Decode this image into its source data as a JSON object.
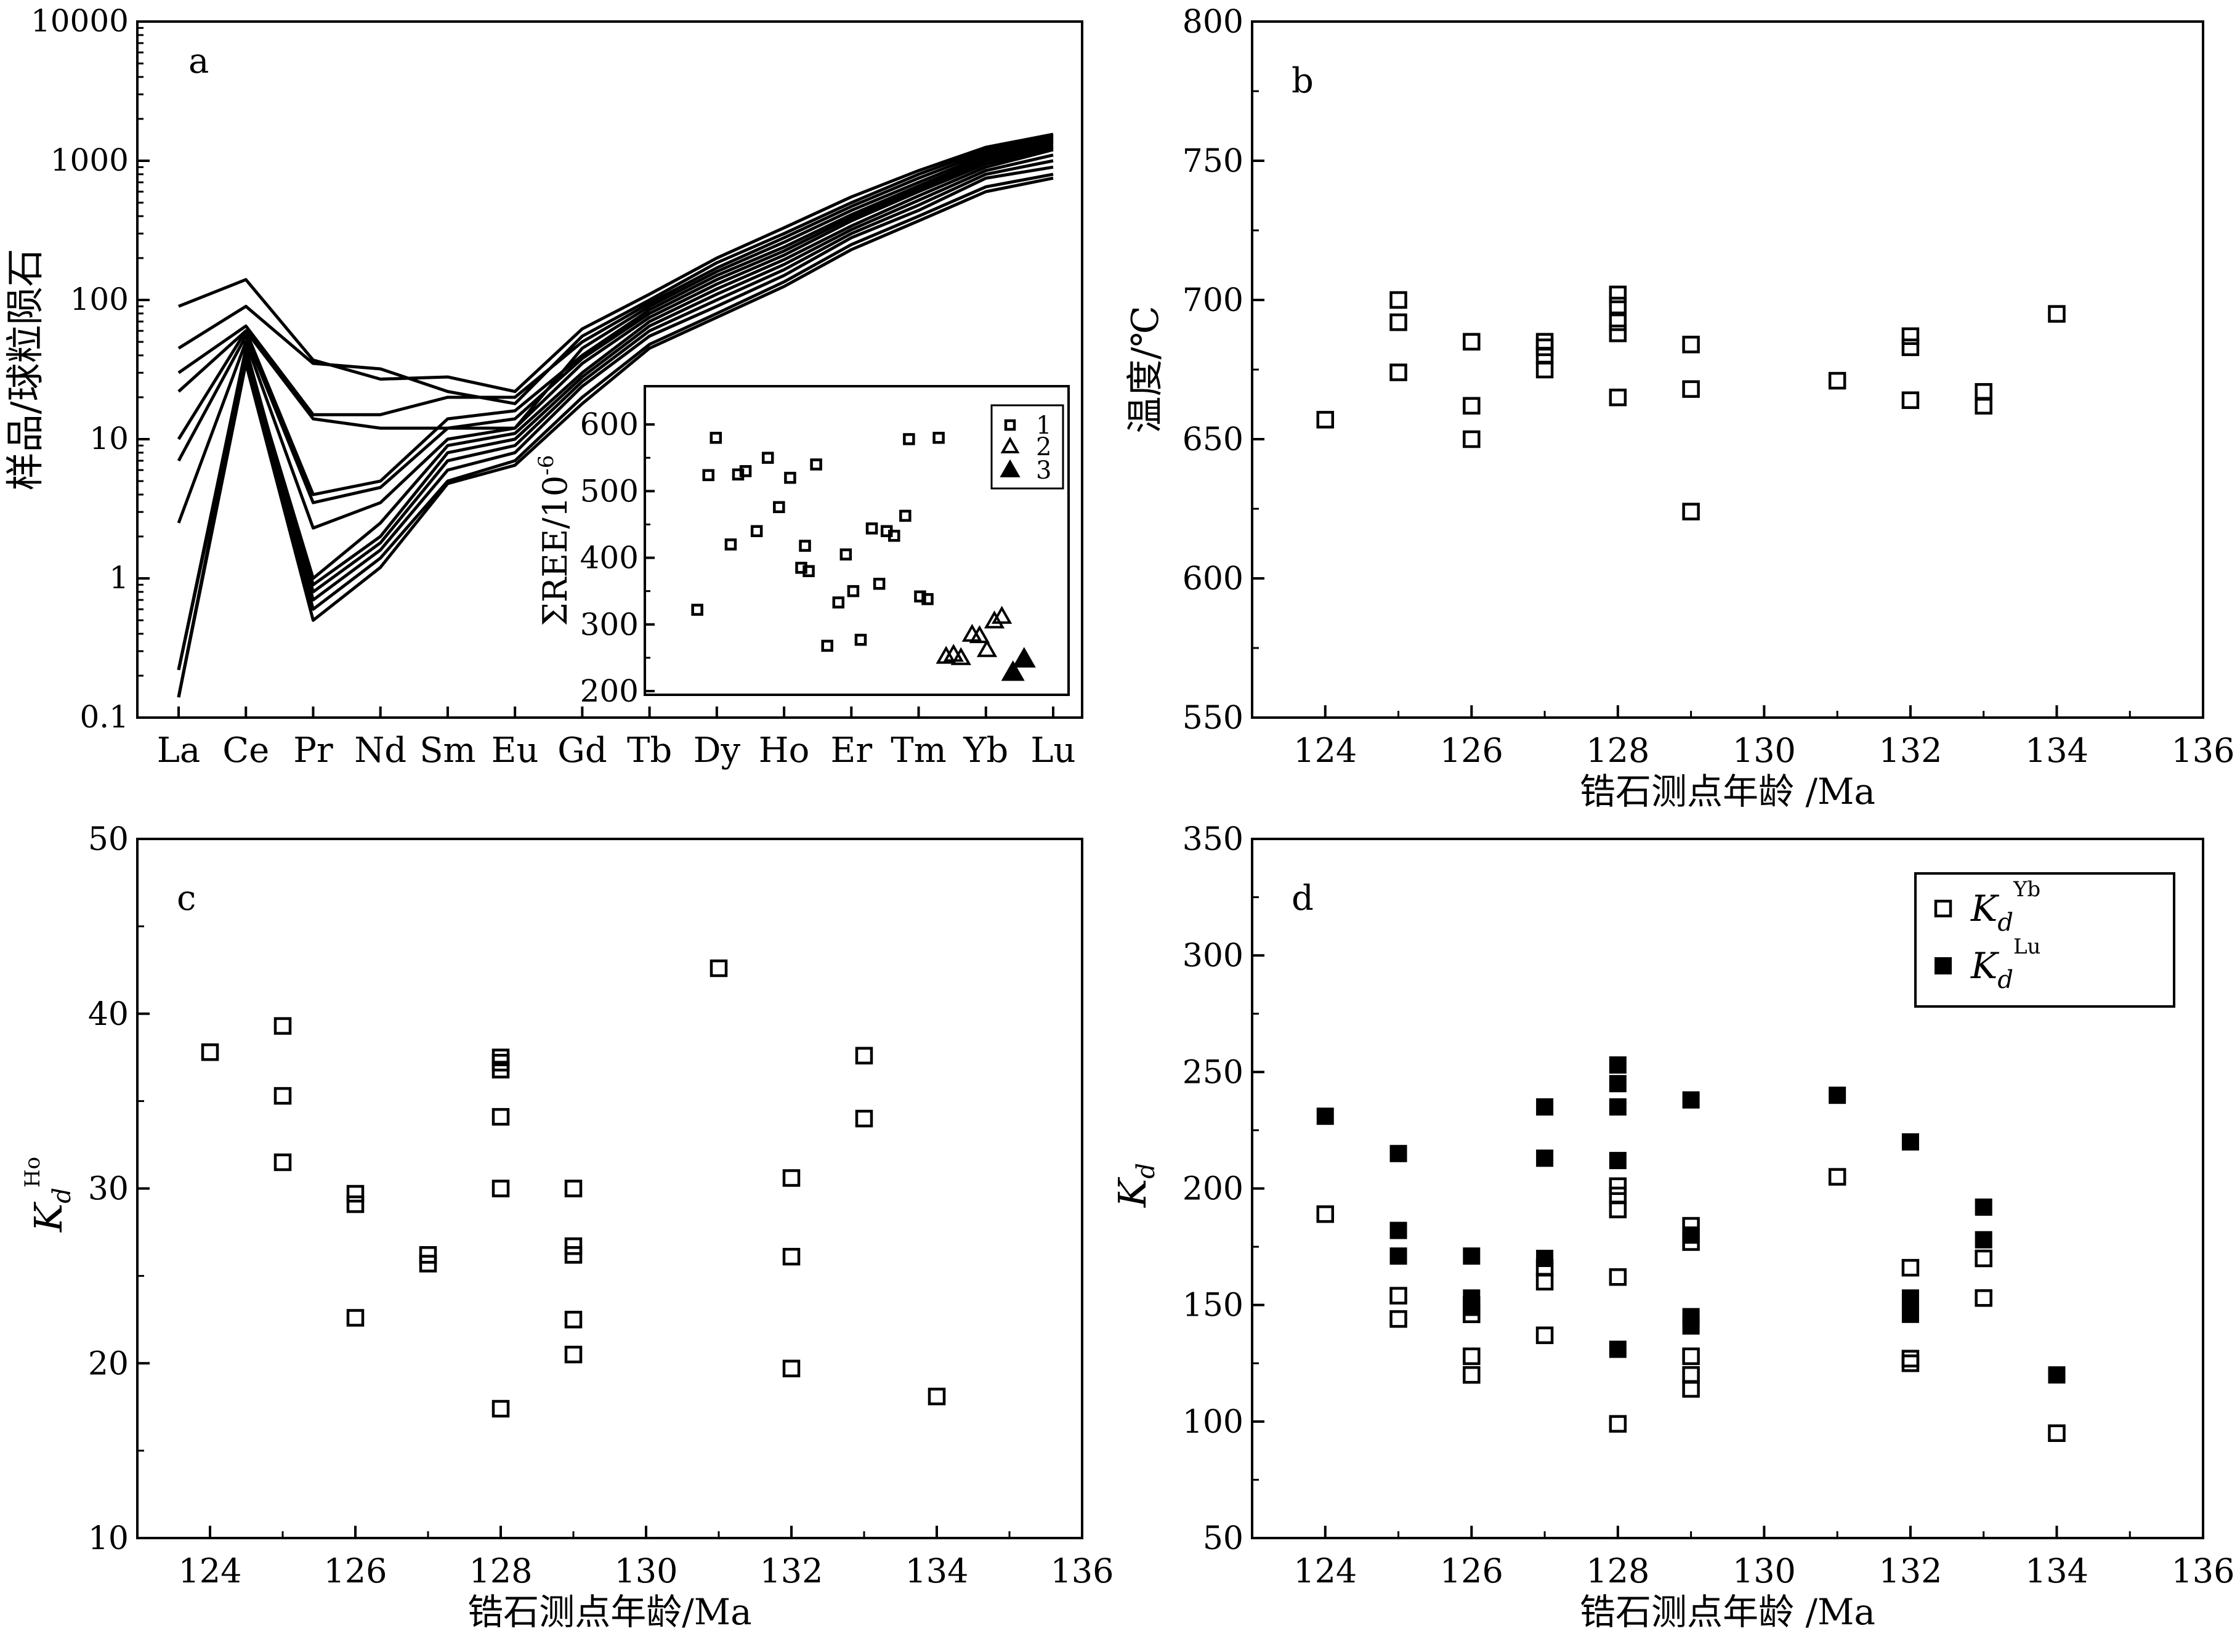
{
  "figure": {
    "panel_a": {
      "tag": "a",
      "ylabel": "样品/球粒陨石",
      "yticks": [
        "0.1",
        "1",
        "10",
        "100",
        "1000",
        "10000"
      ],
      "xticks": [
        "La",
        "Ce",
        "Pr",
        "Nd",
        "Sm",
        "Eu",
        "Gd",
        "Tb",
        "Dy",
        "Ho",
        "Er",
        "Tm",
        "Yb",
        "Lu"
      ],
      "inset": {
        "ylabel": "ΣREE/10",
        "ylabel_exp": "-6",
        "yticks": [
          "200",
          "300",
          "400",
          "500",
          "600"
        ],
        "legend": [
          "1",
          "2",
          "3"
        ]
      }
    },
    "panel_b": {
      "tag": "b",
      "ylabel": "温度/℃",
      "xlabel": "锆石测点年龄 /Ma",
      "yticks": [
        "550",
        "600",
        "650",
        "700",
        "750",
        "800"
      ],
      "xticks": [
        "124",
        "126",
        "128",
        "130",
        "132",
        "134",
        "136"
      ]
    },
    "panel_c": {
      "tag": "c",
      "ylabel_main": "K",
      "ylabel_sub": "d",
      "ylabel_sup": "Ho",
      "xlabel": "锆石测点年龄/Ma",
      "yticks": [
        "10",
        "20",
        "30",
        "40",
        "50"
      ],
      "xticks": [
        "124",
        "126",
        "128",
        "130",
        "132",
        "134",
        "136"
      ]
    },
    "panel_d": {
      "tag": "d",
      "ylabel_main": "K",
      "ylabel_sub": "d",
      "xlabel": "锆石测点年龄 /Ma",
      "yticks": [
        "50",
        "100",
        "150",
        "200",
        "250",
        "300",
        "350"
      ],
      "xticks": [
        "124",
        "126",
        "128",
        "130",
        "132",
        "134",
        "136"
      ],
      "legend": [
        {
          "main": "K",
          "sub": "d",
          "sup": "Yb",
          "filled": false
        },
        {
          "main": "K",
          "sub": "d",
          "sup": "Lu",
          "filled": true
        }
      ]
    }
  },
  "chart_data": [
    {
      "panel": "a",
      "type": "line",
      "y_scale": "log",
      "ylim": [
        0.1,
        10000
      ],
      "ylabel": "样品/球粒陨石",
      "categories": [
        "La",
        "Ce",
        "Pr",
        "Nd",
        "Sm",
        "Eu",
        "Gd",
        "Tb",
        "Dy",
        "Ho",
        "Er",
        "Tm",
        "Yb",
        "Lu"
      ],
      "series": [
        {
          "values": [
            90,
            140,
            37,
            27,
            28,
            22,
            62,
            110,
            200,
            330,
            550,
            850,
            1250,
            1550
          ]
        },
        {
          "values": [
            45,
            90,
            35,
            32,
            22,
            18,
            55,
            100,
            185,
            300,
            500,
            800,
            1200,
            1500
          ]
        },
        {
          "values": [
            30,
            65,
            15,
            15,
            20,
            20,
            50,
            95,
            170,
            280,
            470,
            750,
            1150,
            1450
          ]
        },
        {
          "values": [
            22,
            60,
            14,
            12,
            12,
            12,
            45,
            90,
            160,
            260,
            440,
            700,
            1100,
            1400
          ]
        },
        {
          "values": [
            10,
            60,
            4.0,
            5.0,
            14,
            16,
            40,
            85,
            150,
            240,
            410,
            660,
            1050,
            1350
          ]
        },
        {
          "values": [
            7,
            55,
            3.5,
            4.5,
            12,
            14,
            38,
            80,
            140,
            225,
            390,
            630,
            1000,
            1300
          ]
        },
        {
          "values": [
            2.5,
            50,
            2.3,
            3.5,
            10,
            12,
            35,
            75,
            130,
            210,
            370,
            600,
            950,
            1250
          ]
        },
        {
          "values": [
            0.22,
            40,
            1.0,
            2.5,
            9,
            11,
            30,
            70,
            120,
            195,
            340,
            560,
            900,
            1200
          ]
        },
        {
          "values": [
            0.14,
            38,
            0.9,
            2.0,
            8,
            10,
            28,
            65,
            110,
            180,
            320,
            520,
            850,
            1100
          ]
        },
        {
          "values": [
            0.22,
            45,
            0.8,
            1.8,
            7,
            9,
            26,
            60,
            100,
            165,
            300,
            480,
            800,
            1000
          ]
        },
        {
          "values": [
            0.14,
            40,
            0.7,
            1.6,
            6,
            8,
            24,
            55,
            90,
            150,
            280,
            440,
            750,
            900
          ]
        },
        {
          "values": [
            0.22,
            42,
            0.6,
            1.4,
            5,
            7,
            20,
            48,
            80,
            135,
            250,
            400,
            650,
            800
          ]
        },
        {
          "values": [
            0.14,
            35,
            0.5,
            1.2,
            4.8,
            6.5,
            18,
            45,
            75,
            125,
            230,
            370,
            600,
            750
          ]
        }
      ]
    },
    {
      "panel": "a-inset",
      "type": "scatter",
      "ylabel": "ΣREE/10-6",
      "ylim": [
        200,
        650
      ],
      "series": [
        {
          "name": "1",
          "marker": "open-square",
          "x": [
            0.05,
            0.1,
            0.08,
            0.16,
            0.14,
            0.21,
            0.18,
            0.27,
            0.24,
            0.3,
            0.33,
            0.34,
            0.35,
            0.37,
            0.4,
            0.43,
            0.45,
            0.47,
            0.49,
            0.52,
            0.54,
            0.56,
            0.58,
            0.61,
            0.62,
            0.65,
            0.67,
            0.7
          ],
          "y": [
            322,
            580,
            524,
            525,
            420,
            440,
            530,
            476,
            550,
            520,
            385,
            418,
            380,
            540,
            268,
            333,
            405,
            350,
            277,
            444,
            361,
            440,
            433,
            463,
            578,
            342,
            338,
            580
          ]
        },
        {
          "name": "2",
          "marker": "open-triangle",
          "x": [
            0.72,
            0.74,
            0.76,
            0.79,
            0.81,
            0.83,
            0.85,
            0.87
          ],
          "y": [
            252,
            255,
            250,
            285,
            283,
            262,
            305,
            312
          ]
        },
        {
          "name": "3",
          "marker": "filled-triangle",
          "x": [
            0.9,
            0.93
          ],
          "y": [
            228,
            248
          ]
        }
      ]
    },
    {
      "panel": "b",
      "type": "scatter",
      "xlabel": "锆石测点年龄 /Ma",
      "ylabel": "温度/℃",
      "xlim": [
        123,
        136
      ],
      "ylim": [
        550,
        800
      ],
      "series": [
        {
          "marker": "open-square",
          "x": [
            124,
            125,
            125,
            125,
            126,
            126,
            126,
            127,
            127,
            127,
            127,
            128,
            128,
            128,
            128,
            128,
            129,
            129,
            129,
            131,
            132,
            132,
            132,
            133,
            133,
            134
          ],
          "y": [
            657,
            700,
            692,
            674,
            685,
            662,
            650,
            685,
            680,
            675,
            683,
            702,
            698,
            692,
            688,
            665,
            684,
            668,
            624,
            671,
            687,
            683,
            664,
            667,
            662,
            695
          ]
        }
      ]
    },
    {
      "panel": "c",
      "type": "scatter",
      "xlabel": "锆石测点年龄/Ma",
      "ylabel": "Kd Ho",
      "xlim": [
        123,
        136
      ],
      "ylim": [
        10,
        50
      ],
      "series": [
        {
          "marker": "open-square",
          "x": [
            124,
            125,
            125,
            125,
            126,
            126,
            126,
            127,
            127,
            128,
            128,
            128,
            128,
            128,
            128,
            129,
            129,
            129,
            129,
            129,
            131,
            132,
            132,
            132,
            133,
            133,
            134
          ],
          "y": [
            37.8,
            39.3,
            35.3,
            31.5,
            29.7,
            29.1,
            22.6,
            26.2,
            25.7,
            37.5,
            36.8,
            34.1,
            30.0,
            17.4,
            37.2,
            30.0,
            26.7,
            26.2,
            22.5,
            20.5,
            42.6,
            30.6,
            26.1,
            19.7,
            37.6,
            34.0,
            18.1
          ]
        }
      ]
    },
    {
      "panel": "d",
      "type": "scatter",
      "xlabel": "锆石测点年龄 /Ma",
      "ylabel": "Kd",
      "xlim": [
        123,
        136
      ],
      "ylim": [
        50,
        350
      ],
      "series": [
        {
          "name": "Kd Yb",
          "marker": "open-square",
          "x": [
            124,
            125,
            125,
            126,
            126,
            126,
            126,
            127,
            127,
            127,
            128,
            128,
            128,
            128,
            128,
            129,
            129,
            129,
            129,
            129,
            131,
            132,
            132,
            132,
            133,
            133,
            134
          ],
          "y": [
            189,
            154,
            144,
            150,
            146,
            128,
            120,
            166,
            160,
            137,
            201,
            197,
            191,
            162,
            99,
            184,
            128,
            120,
            114,
            177,
            205,
            166,
            127,
            125,
            170,
            153,
            95
          ]
        },
        {
          "name": "Kd Lu",
          "marker": "filled-square",
          "x": [
            124,
            125,
            125,
            125,
            126,
            126,
            126,
            127,
            127,
            127,
            128,
            128,
            128,
            128,
            128,
            129,
            129,
            129,
            129,
            131,
            132,
            132,
            132,
            133,
            133,
            134
          ],
          "y": [
            231,
            215,
            182,
            171,
            171,
            153,
            149,
            235,
            213,
            170,
            253,
            245,
            235,
            212,
            131,
            238,
            180,
            145,
            141,
            240,
            220,
            153,
            146,
            192,
            178,
            120
          ]
        }
      ]
    }
  ]
}
